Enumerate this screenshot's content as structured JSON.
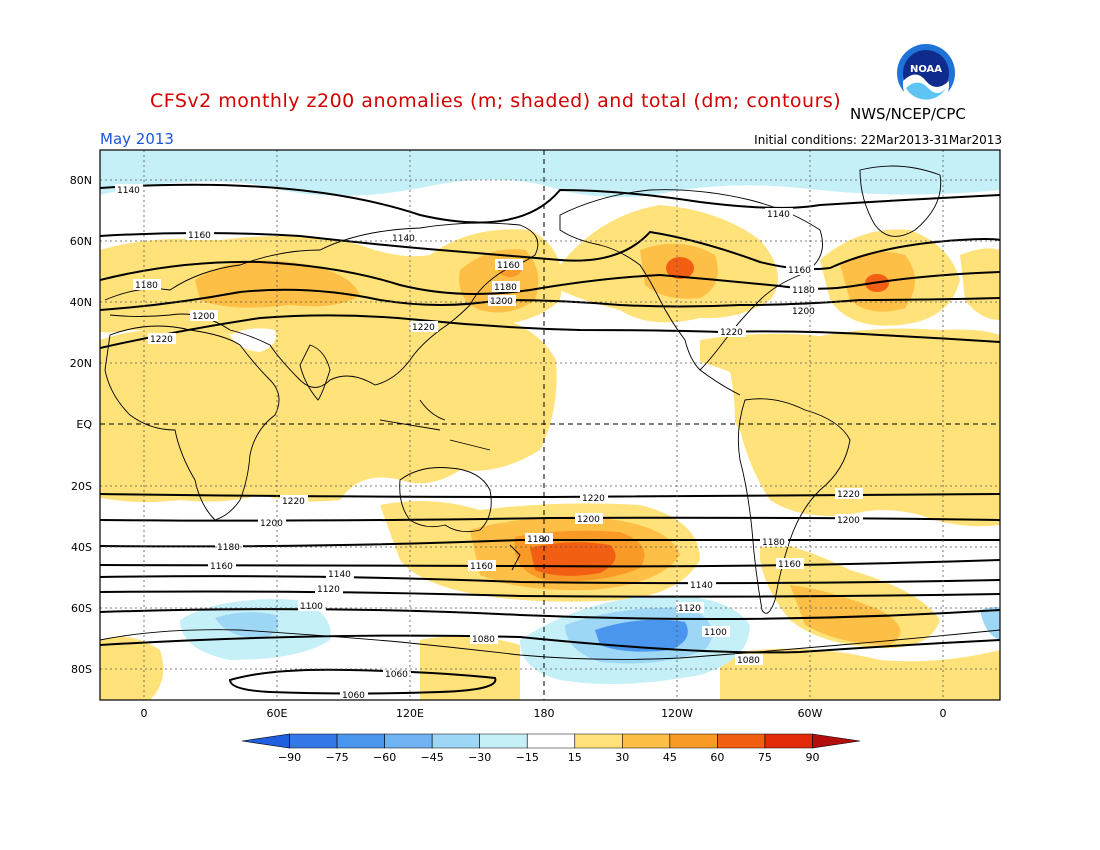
{
  "title": "CFSv2 monthly z200 anomalies (m; shaded) and total (dm; contours)",
  "agency": "NWS/NCEP/CPC",
  "logo_text": "NOAA",
  "month": "May 2013",
  "initial_conditions": "Initial conditions: 22Mar2013-31Mar2013",
  "lat_labels": [
    "80N",
    "60N",
    "40N",
    "20N",
    "EQ",
    "20S",
    "40S",
    "60S",
    "80S"
  ],
  "lon_labels": [
    "0",
    "60E",
    "120E",
    "180",
    "120W",
    "60W",
    "0"
  ],
  "colorbar": {
    "labels": [
      "-90",
      "-75",
      "-60",
      "-45",
      "-30",
      "-15",
      "15",
      "30",
      "45",
      "60",
      "75",
      "90"
    ],
    "colors": [
      "#1f5fe0",
      "#3478e8",
      "#4a95ee",
      "#6fb3f3",
      "#9ed6f6",
      "#c6f0f8",
      "#ffffff",
      "#ffe27a",
      "#fdbf46",
      "#fa9a26",
      "#f35f12",
      "#e32a08",
      "#b30e0e"
    ]
  },
  "contour_labels": {
    "c1140a": "1140",
    "c1140b": "1140",
    "c1140c": "1140",
    "c1160a": "1160",
    "c1160b": "1160",
    "c1160c": "1160",
    "c1180a": "1180",
    "c1180b": "1180",
    "c1180c": "1180",
    "c1200a": "1200",
    "c1200b": "1200",
    "c1200c": "1200",
    "c1220a": "1220",
    "c1220b": "1220",
    "c1220c": "1220",
    "s1220a": "1220",
    "s1220b": "1220",
    "s1220c": "1220",
    "s1200a": "1200",
    "s1200b": "1200",
    "s1200c": "1200",
    "s1180a": "1180",
    "s1180b": "1180",
    "s1180c": "1180",
    "s1160a": "1160",
    "s1160b": "1160",
    "s1160c": "1160",
    "s1140a": "1140",
    "s1140b": "1140",
    "s1120a": "1120",
    "s1120b": "1120",
    "s1100a": "1100",
    "s1100b": "1100",
    "s1080a": "1080",
    "s1080b": "1080",
    "s1060a": "1060",
    "s1060b": "1060"
  }
}
